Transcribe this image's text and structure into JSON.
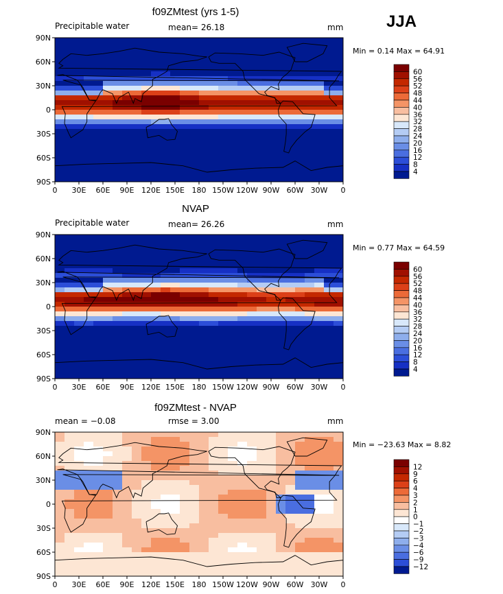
{
  "season": "JJA",
  "units_label": "mm",
  "panels": [
    {
      "title": "f09ZMtest (yrs 1-5)",
      "left_label": "Precipitable water",
      "center_label": "mean=  26.18",
      "right_label": "mm",
      "stat_text": "Min =   0.14 Max =  64.91",
      "palette": "abs"
    },
    {
      "title": "NVAP",
      "left_label": "Precipitable water",
      "center_label": "mean=  26.26",
      "right_label": "mm",
      "stat_text": "Min =   0.77 Max =  64.59",
      "palette": "abs"
    },
    {
      "title": "f09ZMtest - NVAP",
      "left_label": "mean =  −0.08",
      "center_label": "rmse =   3.00",
      "right_label": "mm",
      "stat_text": "Min = −23.63 Max =   8.82",
      "palette": "diff"
    }
  ],
  "chart_data": [
    {
      "type": "heatmap",
      "title": "f09ZMtest (yrs 1-5)",
      "variable": "Precipitable water",
      "units": "mm",
      "mean": 26.18,
      "min": 0.14,
      "max": 64.91,
      "x_ticks": [
        "0",
        "30E",
        "60E",
        "90E",
        "120E",
        "150E",
        "180",
        "150W",
        "120W",
        "90W",
        "60W",
        "30W",
        "0"
      ],
      "y_ticks": [
        "90N",
        "60N",
        "30N",
        "0",
        "30S",
        "60S",
        "90S"
      ],
      "levels": [
        4,
        8,
        12,
        16,
        20,
        24,
        28,
        32,
        36,
        40,
        44,
        48,
        52,
        56,
        60
      ]
    },
    {
      "type": "heatmap",
      "title": "NVAP",
      "variable": "Precipitable water",
      "units": "mm",
      "mean": 26.26,
      "min": 0.77,
      "max": 64.59,
      "x_ticks": [
        "0",
        "30E",
        "60E",
        "90E",
        "120E",
        "150E",
        "180",
        "150W",
        "120W",
        "90W",
        "60W",
        "30W",
        "0"
      ],
      "y_ticks": [
        "90N",
        "60N",
        "30N",
        "0",
        "30S",
        "60S",
        "90S"
      ],
      "levels": [
        4,
        8,
        12,
        16,
        20,
        24,
        28,
        32,
        36,
        40,
        44,
        48,
        52,
        56,
        60
      ]
    },
    {
      "type": "heatmap",
      "title": "f09ZMtest - NVAP",
      "units": "mm",
      "mean": -0.08,
      "rmse": 3.0,
      "min": -23.63,
      "max": 8.82,
      "x_ticks": [
        "0",
        "30E",
        "60E",
        "90E",
        "120E",
        "150E",
        "180",
        "150W",
        "120W",
        "90W",
        "60W",
        "30W",
        "0"
      ],
      "y_ticks": [
        "90N",
        "60N",
        "30N",
        "0",
        "30S",
        "60S",
        "90S"
      ],
      "levels": [
        -12,
        -9,
        -6,
        -4,
        -3,
        -2,
        -1,
        0,
        1,
        2,
        3,
        4,
        6,
        9,
        12
      ]
    }
  ],
  "colorbars": {
    "abs": {
      "labels": [
        "60",
        "56",
        "52",
        "48",
        "44",
        "40",
        "36",
        "32",
        "28",
        "24",
        "20",
        "16",
        "12",
        "8",
        "4"
      ],
      "colors": [
        "#7a0000",
        "#a01000",
        "#c42800",
        "#dc4018",
        "#ec6a38",
        "#f49466",
        "#f8bea0",
        "#fde6d4",
        "#d8e8fa",
        "#b4ccf4",
        "#8eaeec",
        "#6a8ee6",
        "#4a6ee0",
        "#2c4ed8",
        "#1630c4",
        "#001a90"
      ]
    },
    "diff": {
      "labels": [
        "12",
        "9",
        "6",
        "4",
        "3",
        "2",
        "1",
        "0",
        "−1",
        "−2",
        "−3",
        "−4",
        "−6",
        "−9",
        "−12"
      ],
      "colors": [
        "#7a0000",
        "#a01000",
        "#c42800",
        "#dc4018",
        "#ec6a38",
        "#f49466",
        "#f8bea0",
        "#fde6d4",
        "#ffffff",
        "#d8e8fa",
        "#b4ccf4",
        "#8eaeec",
        "#6a8ee6",
        "#4a6ee0",
        "#2c4ed8",
        "#001a90"
      ]
    }
  }
}
